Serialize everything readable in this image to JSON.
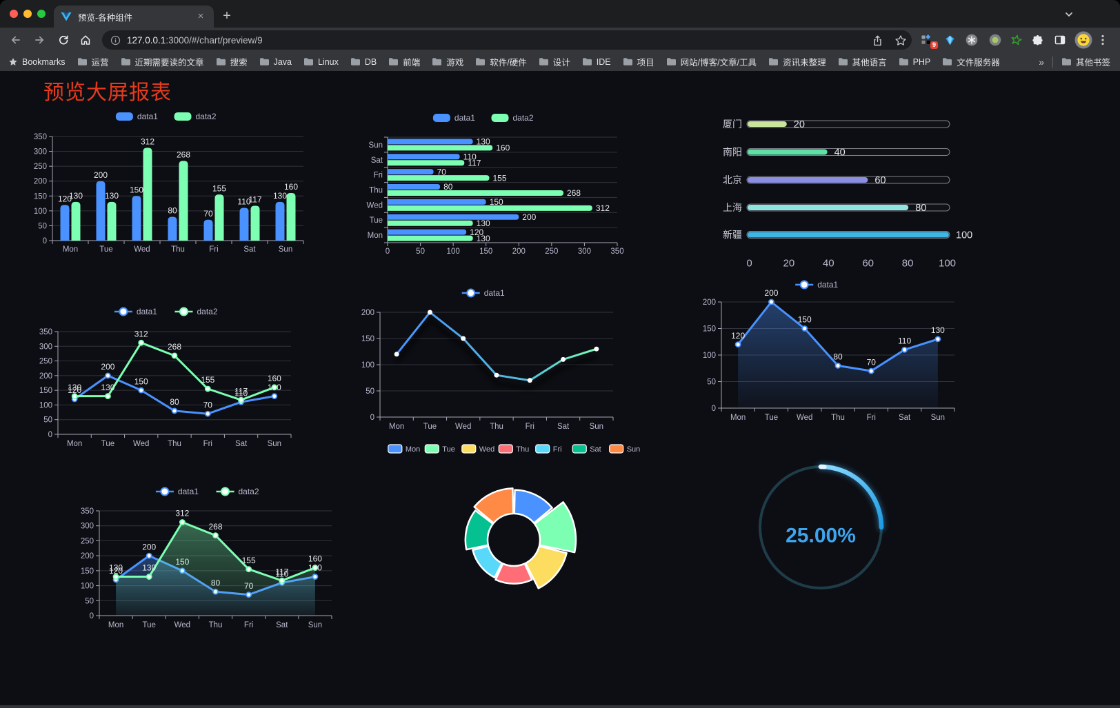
{
  "browser": {
    "window_controls": {
      "close": "#ff5f57",
      "minimize": "#febc2e",
      "zoom": "#28c840"
    },
    "tab": {
      "title": "预览-各种组件",
      "close_label": "×"
    },
    "new_tab_label": "+",
    "address": {
      "host": "127.0.0.1",
      "rest": ":3000/#/chart/preview/9"
    },
    "extension_badge": "9",
    "bookmarks_bar": {
      "label": "Bookmarks",
      "folders": [
        "运营",
        "近期需要读的文章",
        "搜索",
        "Java",
        "Linux",
        "DB",
        "前端",
        "游戏",
        "软件/硬件",
        "设计",
        "IDE",
        "项目",
        "网站/博客/文章/工具",
        "资讯未整理",
        "其他语言",
        "PHP",
        "文件服务器"
      ],
      "overflow": "»",
      "other_bookmarks": "其他书签"
    }
  },
  "page": {
    "title": "预览大屏报表",
    "title_color": "#e43b1d",
    "background": "#0d0e13"
  },
  "chart_data": [
    {
      "id": "bar1",
      "type": "bar",
      "categories": [
        "Mon",
        "Tue",
        "Wed",
        "Thu",
        "Fri",
        "Sat",
        "Sun"
      ],
      "series": [
        {
          "name": "data1",
          "color": "#4992ff",
          "values": [
            120,
            200,
            150,
            80,
            70,
            110,
            130
          ]
        },
        {
          "name": "data2",
          "color": "#7cffb2",
          "values": [
            130,
            130,
            312,
            268,
            155,
            117,
            160
          ]
        }
      ],
      "ylim": [
        0,
        350
      ],
      "ytick_step": 50,
      "legend_position": "top",
      "grid": true
    },
    {
      "id": "bar2",
      "type": "bar-horizontal",
      "categories": [
        "Mon",
        "Tue",
        "Wed",
        "Thu",
        "Fri",
        "Sat",
        "Sun"
      ],
      "y_order": [
        "Sun",
        "Sat",
        "Fri",
        "Thu",
        "Wed",
        "Tue",
        "Mon"
      ],
      "series": [
        {
          "name": "data1",
          "color": "#4992ff",
          "values": [
            120,
            200,
            150,
            80,
            70,
            110,
            130
          ]
        },
        {
          "name": "data2",
          "color": "#7cffb2",
          "values": [
            130,
            130,
            312,
            268,
            155,
            117,
            160
          ]
        }
      ],
      "xlim": [
        0,
        350
      ],
      "xtick_step": 50,
      "legend_position": "top",
      "grid": true
    },
    {
      "id": "progress",
      "type": "progress-bars",
      "items": [
        {
          "label": "厦门",
          "value": 20,
          "color": "#c9e49b"
        },
        {
          "label": "南阳",
          "value": 40,
          "color": "#5fe0a7"
        },
        {
          "label": "北京",
          "value": 60,
          "color": "#8b8fe3"
        },
        {
          "label": "上海",
          "value": 80,
          "color": "#8fe5e0"
        },
        {
          "label": "新疆",
          "value": 100,
          "color": "#3eb6e4"
        }
      ],
      "xlim": [
        0,
        100
      ],
      "xticks": [
        0,
        20,
        40,
        60,
        80,
        100
      ]
    },
    {
      "id": "line1",
      "type": "line",
      "categories": [
        "Mon",
        "Tue",
        "Wed",
        "Thu",
        "Fri",
        "Sat",
        "Sun"
      ],
      "series": [
        {
          "name": "data1",
          "color": "#4992ff",
          "values": [
            120,
            200,
            150,
            80,
            70,
            110,
            130
          ]
        },
        {
          "name": "data2",
          "color": "#7cffb2",
          "values": [
            130,
            130,
            312,
            268,
            155,
            117,
            160
          ]
        }
      ],
      "ylim": [
        0,
        350
      ],
      "ytick_step": 50,
      "legend_position": "top",
      "grid": true
    },
    {
      "id": "line2",
      "type": "line",
      "categories": [
        "Mon",
        "Tue",
        "Wed",
        "Thu",
        "Fri",
        "Sat",
        "Sun"
      ],
      "series": [
        {
          "name": "data1",
          "color": "#4992ff",
          "gradient_to": "#7cffb2",
          "values": [
            120,
            200,
            150,
            80,
            70,
            110,
            130
          ]
        }
      ],
      "ylim": [
        0,
        200
      ],
      "ytick_step": 50,
      "legend_position": "top",
      "grid": true
    },
    {
      "id": "area1",
      "type": "area",
      "categories": [
        "Mon",
        "Tue",
        "Wed",
        "Thu",
        "Fri",
        "Sat",
        "Sun"
      ],
      "series": [
        {
          "name": "data1",
          "color": "#4992ff",
          "values": [
            120,
            200,
            150,
            80,
            70,
            110,
            130
          ]
        }
      ],
      "ylim": [
        0,
        200
      ],
      "ytick_step": 50,
      "legend_position": "top",
      "grid": true
    },
    {
      "id": "area2",
      "type": "area",
      "categories": [
        "Mon",
        "Tue",
        "Wed",
        "Thu",
        "Fri",
        "Sat",
        "Sun"
      ],
      "series": [
        {
          "name": "data1",
          "color": "#4992ff",
          "values": [
            120,
            200,
            150,
            80,
            70,
            110,
            130
          ]
        },
        {
          "name": "data2",
          "color": "#7cffb2",
          "values": [
            130,
            130,
            312,
            268,
            155,
            117,
            160
          ]
        }
      ],
      "ylim": [
        0,
        350
      ],
      "ytick_step": 50,
      "legend_position": "top",
      "grid": true
    },
    {
      "id": "pie",
      "type": "pie",
      "subtype": "rose-donut",
      "categories": [
        "Mon",
        "Tue",
        "Wed",
        "Thu",
        "Fri",
        "Sat",
        "Sun"
      ],
      "values": [
        120,
        200,
        150,
        80,
        70,
        110,
        130
      ],
      "colors": [
        "#4992ff",
        "#7cffb2",
        "#fddd60",
        "#ff6e76",
        "#58d9f9",
        "#05c091",
        "#ff8a45"
      ],
      "legend_position": "top"
    },
    {
      "id": "gauge",
      "type": "gauge",
      "value": 25,
      "display": "25.00%",
      "arc_color_start": "#8fdcff",
      "arc_color_end": "#1e9be2",
      "track_color": "#1f3d49",
      "text_color": "#3da4ee"
    }
  ]
}
